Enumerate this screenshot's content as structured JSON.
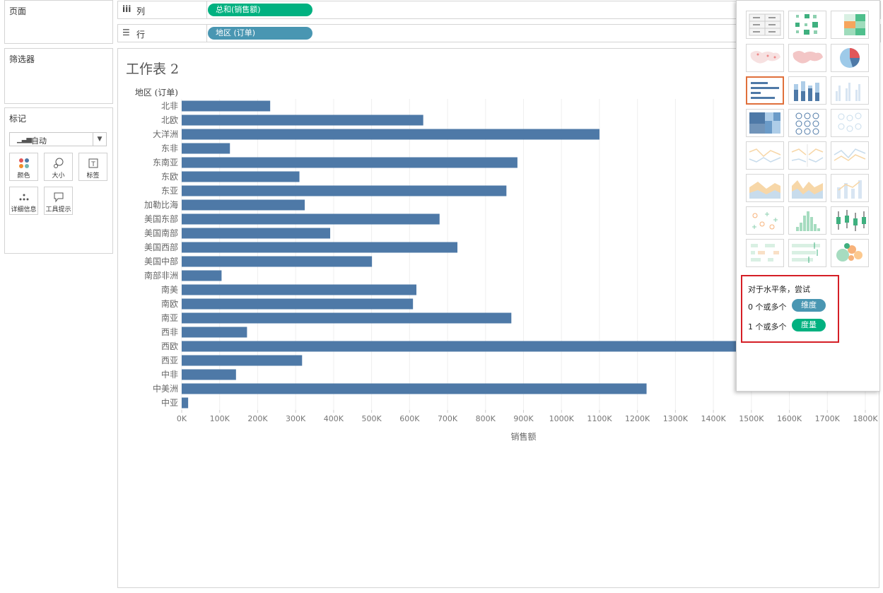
{
  "side": {
    "pages_title": "页面",
    "filters_title": "筛选器",
    "marks_title": "标记",
    "mark_type": "自动",
    "marks_buttons": [
      {
        "label": "颜色",
        "icon": "color-dots-icon"
      },
      {
        "label": "大小",
        "icon": "size-icon"
      },
      {
        "label": "标签",
        "icon": "label-icon"
      },
      {
        "label": "详细信息",
        "icon": "detail-icon"
      },
      {
        "label": "工具提示",
        "icon": "tooltip-icon"
      }
    ]
  },
  "shelves": {
    "columns_label": "列",
    "columns_pill": "总和(销售额)",
    "rows_label": "行",
    "rows_pill": "地区 (订单)"
  },
  "sheet_title": "工作表 2",
  "colors": {
    "bar": "#4e79a7",
    "measure_pill": "#00b180",
    "dimension_pill": "#4996b2",
    "highlight_border": "#d51f26",
    "selected_border": "#e0703b"
  },
  "chart_data": {
    "type": "bar",
    "orientation": "horizontal",
    "ylabel": "地区 (订单)",
    "xlabel": "销售额",
    "categories": [
      "北非",
      "北欧",
      "大洋洲",
      "东非",
      "东南亚",
      "东欧",
      "东亚",
      "加勒比海",
      "美国东部",
      "美国南部",
      "美国西部",
      "美国中部",
      "南部非洲",
      "南美",
      "南欧",
      "南亚",
      "西非",
      "西欧",
      "西亚",
      "中非",
      "中美洲",
      "中亚"
    ],
    "values": [
      233000,
      636000,
      1100000,
      127000,
      884000,
      310000,
      855000,
      324000,
      679000,
      391000,
      726000,
      501000,
      105000,
      618000,
      609000,
      868000,
      172000,
      1460000,
      317000,
      143000,
      1224000,
      17000
    ],
    "xticks": [
      "0K",
      "100K",
      "200K",
      "300K",
      "400K",
      "500K",
      "600K",
      "700K",
      "800K",
      "900K",
      "1000K",
      "1100K",
      "1200K",
      "1300K",
      "1400K",
      "1500K",
      "1600K",
      "1700K",
      "1800K"
    ],
    "xlim": [
      0,
      1800000
    ],
    "grid": true
  },
  "show_me": {
    "hint_title": "对于水平条，尝试",
    "dim_count": "0 个或多个",
    "dim_label": "维度",
    "measure_count": "1 个或多个",
    "measure_label": "度量"
  }
}
